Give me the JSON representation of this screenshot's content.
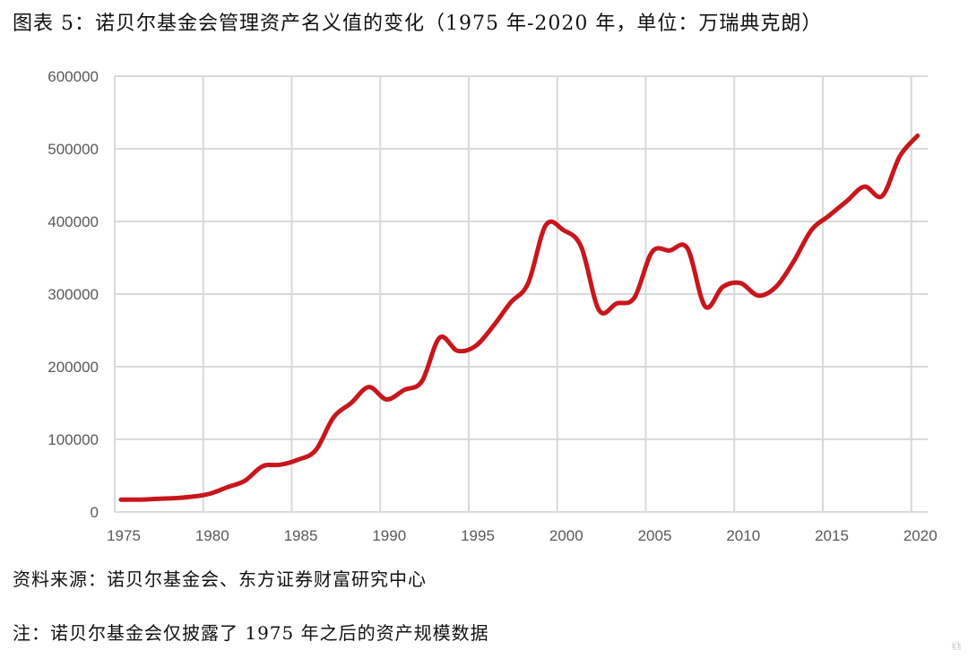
{
  "chart_data": {
    "type": "line",
    "title": "图表 5：诺贝尔基金会管理资产名义值的变化（1975 年-2020 年，单位：万瑞典克朗）",
    "xlabel": "",
    "ylabel": "",
    "xlim": [
      1975,
      2020.6
    ],
    "ylim": [
      0,
      600000
    ],
    "xticks": [
      "1975",
      "1980",
      "1985",
      "1990",
      "1995",
      "2000",
      "2005",
      "2010",
      "2015",
      "2020"
    ],
    "yticks": [
      "0",
      "100000",
      "200000",
      "300000",
      "400000",
      "500000",
      "600000"
    ],
    "grid": true,
    "series": [
      {
        "name": "资产名义值",
        "color": "#c8161d",
        "x": [
          1975,
          1976,
          1977,
          1978,
          1979,
          1980,
          1981,
          1982,
          1983,
          1984,
          1985,
          1986,
          1987,
          1988,
          1989,
          1990,
          1991,
          1992,
          1993,
          1994,
          1995,
          1996,
          1997,
          1998,
          1999,
          2000,
          2001,
          2002,
          2003,
          2004,
          2005,
          2006,
          2007,
          2008,
          2009,
          2010,
          2011,
          2012,
          2013,
          2014,
          2015,
          2016,
          2017,
          2018,
          2019,
          2020
        ],
        "values": [
          17000,
          17000,
          18000,
          19000,
          21000,
          25000,
          34000,
          43000,
          63000,
          65000,
          72000,
          85000,
          130000,
          150000,
          172000,
          155000,
          168000,
          180000,
          240000,
          222000,
          228000,
          255000,
          288000,
          315000,
          395000,
          388000,
          365000,
          278000,
          287000,
          295000,
          358000,
          360000,
          363000,
          283000,
          310000,
          315000,
          298000,
          310000,
          345000,
          388000,
          408000,
          428000,
          448000,
          435000,
          490000,
          518000
        ]
      }
    ]
  },
  "source": "资料来源：诺贝尔基金会、东方证券财富研究中心",
  "footnote": "注：诺贝尔基金会仅披露了 1975 年之后的资产规模数据",
  "watermark": "格隆汇"
}
